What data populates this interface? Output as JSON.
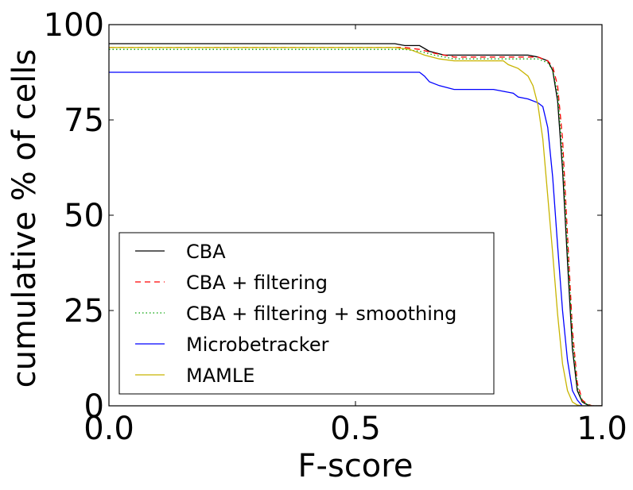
{
  "chart_data": {
    "type": "line",
    "xlabel": "F-score",
    "ylabel": "cumulative % of cells",
    "xlim": [
      0.0,
      1.0
    ],
    "ylim": [
      0,
      100
    ],
    "xticks": [
      "0.0",
      "0.5",
      "1.0"
    ],
    "yticks": [
      "0",
      "25",
      "50",
      "75",
      "100"
    ],
    "grid": false,
    "legend_position": "lower-left",
    "series": [
      {
        "name": "CBA",
        "color": "#000000",
        "dash": "solid",
        "x": [
          0.0,
          0.58,
          0.6,
          0.63,
          0.65,
          0.68,
          0.8,
          0.85,
          0.87,
          0.89,
          0.9,
          0.91,
          0.92,
          0.93,
          0.94,
          0.95,
          0.96,
          0.97,
          0.98,
          1.0
        ],
        "y": [
          95,
          95,
          94.5,
          94.5,
          93,
          92,
          92,
          92,
          91.5,
          90.5,
          88,
          80,
          62,
          38,
          15,
          4,
          1,
          0.3,
          0,
          0
        ]
      },
      {
        "name": "CBA + filtering",
        "color": "#ff0000",
        "dash": "dashed",
        "x": [
          0.0,
          0.6,
          0.63,
          0.66,
          0.7,
          0.85,
          0.87,
          0.89,
          0.9,
          0.91,
          0.92,
          0.93,
          0.94,
          0.95,
          0.96,
          0.97,
          0.98,
          1.0
        ],
        "y": [
          94,
          94,
          93.5,
          92.5,
          91.5,
          91.5,
          91.5,
          90.5,
          89,
          84,
          70,
          45,
          20,
          6,
          1.5,
          0.5,
          0,
          0
        ]
      },
      {
        "name": "CBA + filtering + smoothing",
        "color": "#00a000",
        "dash": "dotted",
        "x": [
          0.0,
          0.6,
          0.63,
          0.66,
          0.7,
          0.85,
          0.87,
          0.89,
          0.9,
          0.91,
          0.92,
          0.93,
          0.94,
          0.95,
          0.96,
          0.97,
          0.98,
          1.0
        ],
        "y": [
          93.5,
          93.5,
          93,
          92,
          91,
          91,
          91,
          90,
          88,
          82,
          66,
          42,
          18,
          5,
          1.2,
          0.4,
          0,
          0
        ]
      },
      {
        "name": "Microbetracker",
        "color": "#0000ff",
        "dash": "solid",
        "x": [
          0.0,
          0.63,
          0.64,
          0.65,
          0.67,
          0.7,
          0.78,
          0.8,
          0.82,
          0.83,
          0.85,
          0.87,
          0.88,
          0.89,
          0.9,
          0.91,
          0.92,
          0.93,
          0.94,
          0.95,
          0.96,
          1.0
        ],
        "y": [
          87.5,
          87.5,
          86.5,
          85,
          84,
          83,
          83,
          82.5,
          82,
          81,
          80.5,
          79.5,
          78.5,
          73,
          60,
          42,
          25,
          12,
          4,
          1.5,
          0,
          0
        ]
      },
      {
        "name": "MAMLE",
        "color": "#c8b400",
        "dash": "solid",
        "x": [
          0.0,
          0.58,
          0.61,
          0.64,
          0.67,
          0.7,
          0.72,
          0.8,
          0.81,
          0.83,
          0.84,
          0.85,
          0.86,
          0.87,
          0.88,
          0.89,
          0.9,
          0.91,
          0.92,
          0.93,
          0.94,
          0.95,
          0.96,
          1.0
        ],
        "y": [
          94,
          94,
          93.5,
          92,
          91,
          90.5,
          90.5,
          90.5,
          89.5,
          88.5,
          87.5,
          86.5,
          84,
          79,
          70,
          55,
          40,
          24,
          11,
          4,
          1,
          0.2,
          0,
          0
        ]
      }
    ]
  }
}
